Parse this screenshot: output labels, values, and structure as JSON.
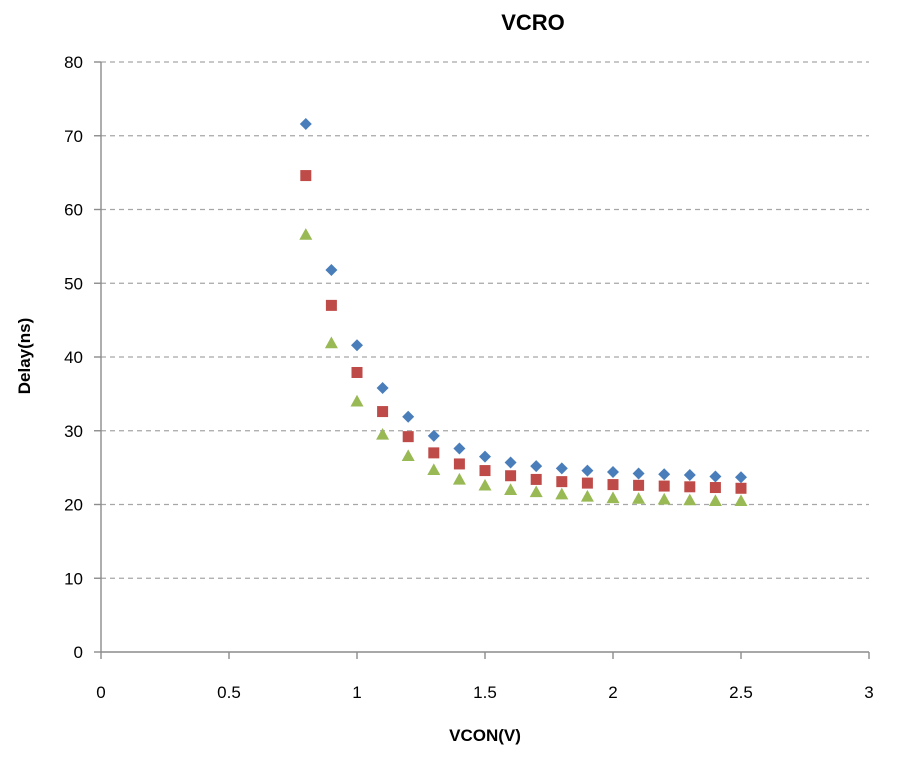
{
  "chart_data": {
    "type": "scatter",
    "title": "VCRO",
    "xlabel": "VCON(V)",
    "ylabel": "Delay(ns)",
    "xlim": [
      0,
      3
    ],
    "ylim": [
      0,
      80
    ],
    "x_ticks": [
      "0",
      "0.5",
      "1",
      "1.5",
      "2",
      "2.5",
      "3"
    ],
    "y_ticks": [
      "0",
      "10",
      "20",
      "30",
      "40",
      "50",
      "60",
      "70",
      "80"
    ],
    "grid": "horizontal-dashed",
    "legend": "none",
    "x": [
      0.8,
      0.9,
      1.0,
      1.1,
      1.2,
      1.3,
      1.4,
      1.5,
      1.6,
      1.7,
      1.8,
      1.9,
      2.0,
      2.1,
      2.2,
      2.3,
      2.4,
      2.5
    ],
    "series": [
      {
        "marker": "diamond",
        "color": "#4a7ebb",
        "values": [
          71.6,
          51.8,
          41.6,
          35.8,
          31.9,
          29.3,
          27.6,
          26.5,
          25.7,
          25.2,
          24.9,
          24.6,
          24.4,
          24.2,
          24.1,
          24.0,
          23.8,
          23.7
        ]
      },
      {
        "marker": "square",
        "color": "#be4b48",
        "values": [
          64.6,
          47.0,
          37.9,
          32.6,
          29.2,
          27.0,
          25.5,
          24.6,
          23.9,
          23.4,
          23.1,
          22.9,
          22.7,
          22.6,
          22.5,
          22.4,
          22.3,
          22.2
        ]
      },
      {
        "marker": "triangle",
        "color": "#98b954",
        "values": [
          56.6,
          41.9,
          34.0,
          29.5,
          26.6,
          24.7,
          23.4,
          22.6,
          22.0,
          21.7,
          21.4,
          21.1,
          20.9,
          20.8,
          20.7,
          20.6,
          20.5,
          20.5
        ]
      }
    ]
  }
}
